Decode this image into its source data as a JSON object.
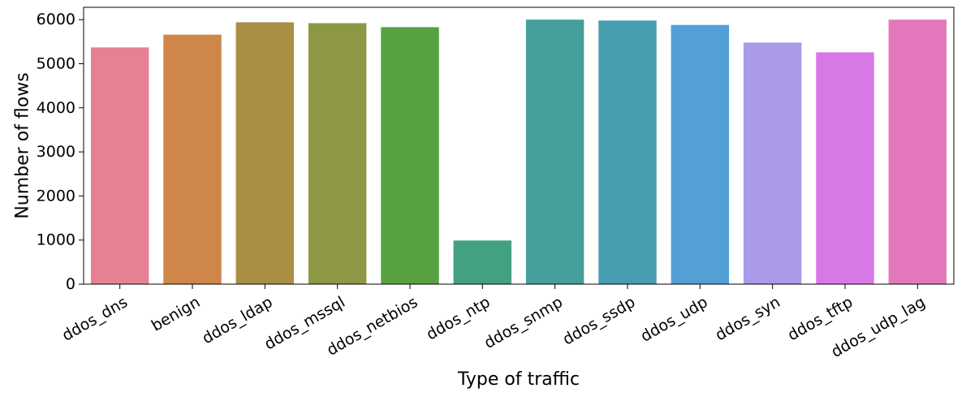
{
  "chart_data": {
    "type": "bar",
    "title": "",
    "xlabel": "Type of traffic",
    "ylabel": "Number of flows",
    "categories": [
      "ddos_dns",
      "benign",
      "ddos_ldap",
      "ddos_mssql",
      "ddos_netbios",
      "ddos_ntp",
      "ddos_snmp",
      "ddos_ssdp",
      "ddos_udp",
      "ddos_syn",
      "ddos_tftp",
      "ddos_udp_lag"
    ],
    "values": [
      5370,
      5660,
      5940,
      5920,
      5830,
      990,
      6000,
      5980,
      5880,
      5480,
      5260,
      6000
    ],
    "colors": [
      "#e68193",
      "#cf8649",
      "#a98f43",
      "#8d9744",
      "#57a140",
      "#43a17f",
      "#449f9a",
      "#479eb0",
      "#53a0d7",
      "#ab9ae7",
      "#d878e6",
      "#e378bd"
    ],
    "ylim": [
      0,
      6280
    ],
    "yticks": [
      0,
      1000,
      2000,
      3000,
      4000,
      5000,
      6000
    ],
    "ytick_labels": [
      "0",
      "1000",
      "2000",
      "3000",
      "4000",
      "5000",
      "6000"
    ],
    "grid": false,
    "legend": "none"
  }
}
